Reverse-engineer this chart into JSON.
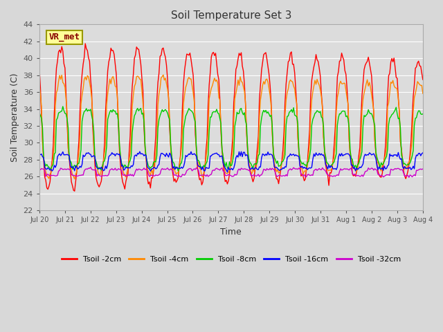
{
  "title": "Soil Temperature Set 3",
  "xlabel": "Time",
  "ylabel": "Soil Temperature (C)",
  "ylim": [
    22,
    44
  ],
  "yticks": [
    22,
    24,
    26,
    28,
    30,
    32,
    34,
    36,
    38,
    40,
    42,
    44
  ],
  "x_labels": [
    "Jul 20",
    "Jul 21",
    "Jul 22",
    "Jul 23",
    "Jul 24",
    "Jul 25",
    "Jul 26",
    "Jul 27",
    "Jul 28",
    "Jul 29",
    "Jul 30",
    "Jul 31",
    "Aug 1",
    "Aug 2",
    "Aug 3",
    "Aug 4"
  ],
  "fig_bg_color": "#d8d8d8",
  "plot_bg_color": "#dcdcdc",
  "grid_color": "#ffffff",
  "series_colors": [
    "#ff0000",
    "#ff8800",
    "#00cc00",
    "#0000ff",
    "#cc00cc"
  ],
  "series_labels": [
    "Tsoil -2cm",
    "Tsoil -4cm",
    "Tsoil -8cm",
    "Tsoil -16cm",
    "Tsoil -32cm"
  ],
  "annotation_text": "VR_met",
  "annotation_color": "#880000",
  "annotation_bg": "#ffff99",
  "annotation_border": "#999900",
  "title_fontsize": 11,
  "axis_label_fontsize": 9,
  "tick_fontsize": 8,
  "legend_fontsize": 8
}
